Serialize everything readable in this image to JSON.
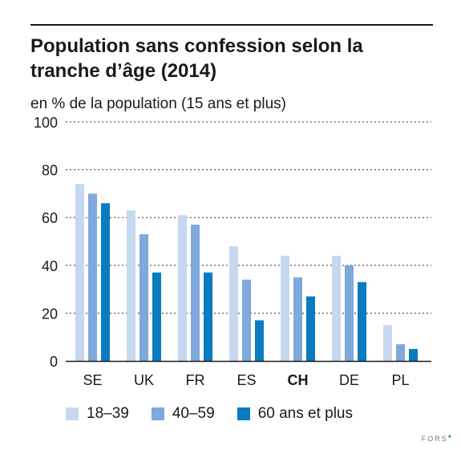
{
  "header": {
    "title": "Population sans confession selon la tranche d’âge (2014)",
    "subtitle": "en % de la population (15 ans et plus)"
  },
  "brand": {
    "name": "FORS",
    "dot": "●"
  },
  "chart_data": {
    "type": "bar",
    "title": "Population sans confession selon la tranche d’âge (2014)",
    "subtitle": "en % de la population (15 ans et plus)",
    "xlabel": "",
    "ylabel": "",
    "ylim": [
      0,
      100
    ],
    "yticks": [
      0,
      20,
      40,
      60,
      80,
      100
    ],
    "grid": "horizontal-dashed",
    "categories": [
      "SE",
      "UK",
      "FR",
      "ES",
      "CH",
      "DE",
      "PL"
    ],
    "highlight_category": "CH",
    "legend_position": "bottom",
    "series": [
      {
        "name": "18–39",
        "color": "#c6d8f0",
        "values": [
          74,
          63,
          61,
          48,
          44,
          44,
          15
        ]
      },
      {
        "name": "40–59",
        "color": "#7fa8dc",
        "values": [
          70,
          53,
          57,
          34,
          35,
          40,
          7
        ]
      },
      {
        "name": "60 ans et plus",
        "color": "#0b7bc1",
        "values": [
          66,
          37,
          37,
          17,
          27,
          33,
          5
        ]
      }
    ]
  }
}
